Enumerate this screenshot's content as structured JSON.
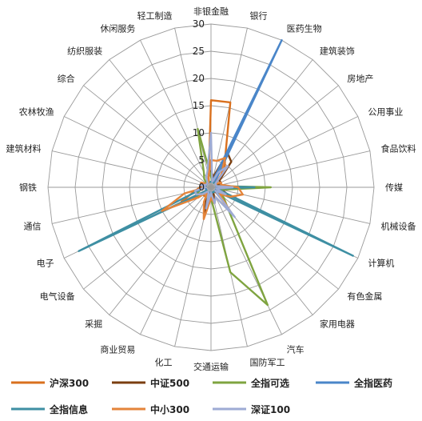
{
  "chart_data": {
    "type": "radar",
    "rlim": [
      0,
      30
    ],
    "rticks": [
      0,
      5,
      10,
      15,
      20,
      25,
      30
    ],
    "grid": true,
    "legend_position": "bottom",
    "categories": [
      "非银金融",
      "银行",
      "医药生物",
      "建筑装饰",
      "房地产",
      "公用事业",
      "食品饮料",
      "传媒",
      "机械设备",
      "计算机",
      "有色金属",
      "家用电器",
      "汽车",
      "国防军工",
      "交通运输",
      "化工",
      "商业贸易",
      "采掘",
      "电气设备",
      "电子",
      "通信",
      "钢铁",
      "建筑材料",
      "农林牧渔",
      "综合",
      "纺织服装",
      "休闲服务",
      "轻工制造"
    ],
    "series": [
      {
        "name": "沪深300",
        "color": "#D9701E",
        "values": [
          16,
          16,
          6,
          4,
          1,
          2,
          2,
          1,
          1,
          2,
          1,
          1,
          1,
          2,
          2,
          3,
          2,
          2,
          2,
          6,
          3,
          2,
          1,
          1,
          1,
          1,
          1,
          2
        ]
      },
      {
        "name": "中证500",
        "color": "#7B3F10",
        "values": [
          3,
          2,
          7,
          6,
          2,
          2,
          1,
          2,
          2,
          4,
          2,
          1,
          1,
          3,
          2,
          5,
          2,
          1,
          2,
          3,
          2,
          2,
          2,
          1,
          1,
          1,
          1,
          2
        ]
      },
      {
        "name": "全指可选",
        "color": "#7FA440",
        "values": [
          2,
          1,
          1,
          1,
          1,
          1,
          1,
          11,
          2,
          1,
          3,
          5,
          24,
          16,
          2,
          2,
          2,
          1,
          3,
          3,
          2,
          1,
          1,
          1,
          1,
          2,
          3,
          11
        ]
      },
      {
        "name": "全指医药",
        "color": "#4A86C9",
        "values": [
          1,
          1,
          30,
          1,
          1,
          1,
          1,
          1,
          1,
          1,
          1,
          1,
          1,
          1,
          1,
          1,
          1,
          1,
          1,
          1,
          1,
          1,
          1,
          1,
          1,
          1,
          1,
          1
        ]
      },
      {
        "name": "全指信息",
        "color": "#3E8FA3",
        "values": [
          1,
          1,
          1,
          1,
          1,
          1,
          1,
          8,
          1,
          29,
          1,
          1,
          1,
          1,
          1,
          1,
          1,
          1,
          1,
          27,
          2,
          1,
          1,
          1,
          1,
          1,
          1,
          1
        ]
      },
      {
        "name": "中小300",
        "color": "#E4843A",
        "values": [
          5,
          5,
          6,
          3,
          1,
          2,
          2,
          5,
          6,
          4,
          2,
          6,
          2,
          3,
          2,
          6,
          3,
          1,
          3,
          10,
          5,
          1,
          2,
          2,
          1,
          1,
          1,
          2
        ]
      },
      {
        "name": "深证100",
        "color": "#9EABD4",
        "values": [
          10,
          1,
          3,
          5,
          1,
          1,
          1,
          4,
          1,
          3,
          1,
          7,
          2,
          3,
          1,
          4,
          1,
          1,
          2,
          3,
          3,
          1,
          2,
          1,
          1,
          1,
          2,
          3
        ]
      }
    ]
  }
}
